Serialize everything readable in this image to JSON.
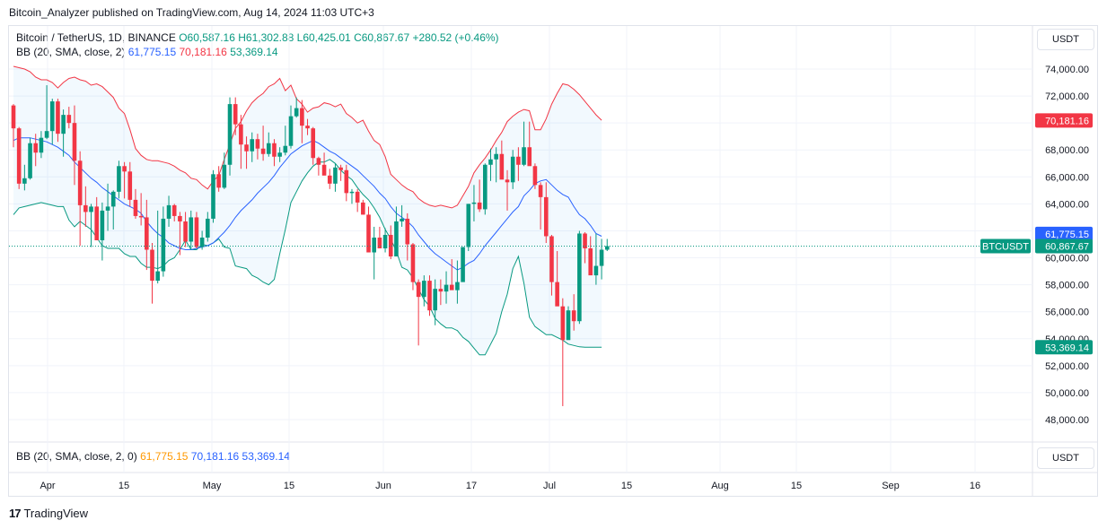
{
  "publisher": "Bitcoin_Analyzer published on TradingView.com, Aug 14, 2024 11:03 UTC+3",
  "legend": {
    "symbol": "Bitcoin / TetherUS, 1D, BINANCE",
    "ohlc": {
      "o": "O60,587.16",
      "h": "H61,302.88",
      "l": "L60,425.01",
      "c": "C60,867.67",
      "chg": "+280.52 (+0.46%)"
    },
    "bb_label": "BB (20, SMA, close, 2)",
    "bb_values": {
      "basis": "61,775.15",
      "upper": "70,181.16",
      "lower": "53,369.14"
    }
  },
  "sub_legend": {
    "label": "BB (20, SMA, close, 2, 0)",
    "v1": "61,775.15",
    "v2": "70,181.16",
    "v3": "53,369.14"
  },
  "currency_unit": "USDT",
  "price_tags": {
    "symbol": "BTCUSDT",
    "last": "60,867.67",
    "basis": "61,775.15",
    "upper": "70,181.16",
    "lower": "53,369.14"
  },
  "colors": {
    "up": "#089981",
    "down": "#f23645",
    "basis": "#2962ff",
    "upper": "#f23645",
    "lower": "#089981",
    "fill": "#2196f3"
  },
  "brand": "TradingView",
  "chart_data": {
    "type": "candlestick",
    "title": "Bitcoin / TetherUS, 1D, BINANCE",
    "ylim": [
      46600,
      74900
    ],
    "y_ticks": [
      "74,000.00",
      "72,000.00",
      "70,000.00",
      "68,000.00",
      "66,000.00",
      "64,000.00",
      "62,000.00",
      "60,000.00",
      "58,000.00",
      "56,000.00",
      "54,000.00",
      "52,000.00",
      "50,000.00",
      "48,000.00"
    ],
    "x_ticks": [
      "Apr",
      "15",
      "May",
      "15",
      "Jun",
      "17",
      "Jul",
      "15",
      "Aug",
      "15",
      "Sep",
      "16"
    ],
    "grid": true,
    "series": [
      {
        "name": "BTCUSDT",
        "values": [
          [
            71300,
            71400,
            68200,
            69600
          ],
          [
            69600,
            69700,
            65100,
            65500
          ],
          [
            65500,
            66900,
            65000,
            65900
          ],
          [
            65900,
            68900,
            65800,
            68500
          ],
          [
            68500,
            69200,
            66800,
            67800
          ],
          [
            67800,
            69400,
            67400,
            68900
          ],
          [
            68900,
            72800,
            68800,
            69400
          ],
          [
            69400,
            71800,
            68400,
            71600
          ],
          [
            71600,
            71800,
            68600,
            69200
          ],
          [
            69200,
            71000,
            67500,
            70600
          ],
          [
            70600,
            71200,
            69600,
            70000
          ],
          [
            70000,
            71300,
            65400,
            67200
          ],
          [
            67200,
            67900,
            60900,
            63900
          ],
          [
            63900,
            65300,
            62300,
            63400
          ],
          [
            63400,
            64000,
            60800,
            63800
          ],
          [
            63800,
            64500,
            61700,
            61300
          ],
          [
            61300,
            64100,
            59800,
            63500
          ],
          [
            63500,
            65500,
            62000,
            63800
          ],
          [
            63800,
            65000,
            62100,
            64900
          ],
          [
            64900,
            67200,
            64400,
            66800
          ],
          [
            66800,
            67100,
            64400,
            66400
          ],
          [
            66400,
            67100,
            63800,
            64300
          ],
          [
            64300,
            65100,
            62900,
            63100
          ],
          [
            63100,
            64800,
            62400,
            63000
          ],
          [
            63000,
            64300,
            59100,
            60600
          ],
          [
            60600,
            61100,
            56600,
            58300
          ],
          [
            58300,
            63500,
            58100,
            59000
          ],
          [
            59000,
            63800,
            58600,
            62900
          ],
          [
            62900,
            64600,
            62300,
            63900
          ],
          [
            63900,
            64000,
            62700,
            63100
          ],
          [
            63100,
            63400,
            60200,
            62700
          ],
          [
            62700,
            63400,
            60800,
            61200
          ],
          [
            61200,
            63500,
            60600,
            63000
          ],
          [
            63000,
            63400,
            60700,
            60800
          ],
          [
            60800,
            62000,
            60600,
            61500
          ],
          [
            61500,
            63400,
            61200,
            62900
          ],
          [
            62900,
            66500,
            62600,
            66200
          ],
          [
            66200,
            66800,
            64900,
            65200
          ],
          [
            65200,
            67800,
            65100,
            66900
          ],
          [
            66900,
            71900,
            66100,
            71400
          ],
          [
            71400,
            71900,
            69100,
            69900
          ],
          [
            69900,
            70600,
            66600,
            68400
          ],
          [
            68400,
            69000,
            66600,
            67900
          ],
          [
            67900,
            69300,
            67100,
            68800
          ],
          [
            68800,
            69200,
            67300,
            68100
          ],
          [
            68100,
            69800,
            67200,
            67700
          ],
          [
            67700,
            69300,
            67500,
            68500
          ],
          [
            68500,
            68800,
            66800,
            67500
          ],
          [
            67500,
            68200,
            67100,
            67800
          ],
          [
            67800,
            69800,
            67600,
            68300
          ],
          [
            68300,
            71300,
            68100,
            70500
          ],
          [
            70500,
            71900,
            70400,
            71100
          ],
          [
            71100,
            71700,
            68500,
            69800
          ],
          [
            69800,
            70300,
            69100,
            69600
          ],
          [
            69600,
            69700,
            66900,
            67400
          ],
          [
            67400,
            67500,
            66100,
            66900
          ],
          [
            66900,
            67800,
            66200,
            66100
          ],
          [
            66100,
            66600,
            65100,
            65500
          ],
          [
            65500,
            67000,
            64900,
            66700
          ],
          [
            66700,
            66900,
            65700,
            66500
          ],
          [
            66500,
            66900,
            64200,
            64800
          ],
          [
            64800,
            65100,
            64000,
            64900
          ],
          [
            64900,
            65100,
            63400,
            64100
          ],
          [
            64100,
            64300,
            63200,
            63200
          ],
          [
            63200,
            63800,
            60500,
            60400
          ],
          [
            60400,
            62300,
            58400,
            61500
          ],
          [
            61500,
            62300,
            60700,
            60700
          ],
          [
            60700,
            62200,
            60400,
            61700
          ],
          [
            61700,
            62400,
            59900,
            60100
          ],
          [
            60100,
            63800,
            60200,
            62700
          ],
          [
            62700,
            63900,
            62300,
            62900
          ],
          [
            62900,
            63300,
            59800,
            61000
          ],
          [
            61000,
            61100,
            57600,
            58200
          ],
          [
            58200,
            58400,
            53500,
            57100
          ],
          [
            57100,
            58700,
            56400,
            58300
          ],
          [
            58300,
            58700,
            55700,
            56100
          ],
          [
            56100,
            58400,
            55000,
            57700
          ],
          [
            57700,
            58400,
            56500,
            57500
          ],
          [
            57500,
            59000,
            56600,
            58000
          ],
          [
            58000,
            59900,
            57800,
            57600
          ],
          [
            57600,
            59800,
            56600,
            58200
          ],
          [
            58200,
            60600,
            58300,
            60800
          ],
          [
            60800,
            64000,
            60500,
            64000
          ],
          [
            64000,
            65400,
            62700,
            64100
          ],
          [
            64100,
            65800,
            63400,
            63600
          ],
          [
            63600,
            67000,
            63200,
            66900
          ],
          [
            66900,
            68100,
            65700,
            67300
          ],
          [
            67300,
            68200,
            65600,
            67700
          ],
          [
            67700,
            68700,
            66200,
            65800
          ],
          [
            65800,
            66500,
            63500,
            65600
          ],
          [
            65600,
            68000,
            65100,
            67500
          ],
          [
            67500,
            68200,
            65700,
            66900
          ],
          [
            66900,
            70100,
            66800,
            68200
          ],
          [
            68200,
            70100,
            67000,
            66800
          ],
          [
            66800,
            67000,
            65100,
            65400
          ],
          [
            65400,
            65600,
            62100,
            64500
          ],
          [
            64500,
            65600,
            61100,
            61600
          ],
          [
            61600,
            61700,
            57200,
            58200
          ],
          [
            58200,
            60500,
            57100,
            56400
          ],
          [
            56400,
            57000,
            49000,
            53900
          ],
          [
            53900,
            56400,
            54000,
            56100
          ],
          [
            56100,
            57300,
            54600,
            55300
          ],
          [
            55300,
            62000,
            55100,
            61800
          ],
          [
            61800,
            61900,
            59600,
            60700
          ],
          [
            60700,
            61600,
            60100,
            58700
          ],
          [
            58700,
            61800,
            58000,
            59400
          ],
          [
            59400,
            61400,
            58400,
            60600
          ],
          [
            60600,
            61400,
            60500,
            60868
          ]
        ]
      },
      {
        "name": "BB basis",
        "values": [
          68700,
          68900,
          68900,
          68900,
          68800,
          68700,
          68600,
          68400,
          68200,
          67900,
          67600,
          67100,
          66700,
          66300,
          65900,
          65600,
          65200,
          64900,
          64600,
          64300,
          64000,
          63800,
          63600,
          63300,
          62700,
          62200,
          61800,
          61500,
          61100,
          60900,
          60700,
          60600,
          60600,
          60700,
          60800,
          60900,
          61100,
          61500,
          61900,
          62400,
          63000,
          63500,
          63900,
          64300,
          64800,
          65200,
          65600,
          66100,
          66700,
          67200,
          67700,
          68000,
          68300,
          68500,
          68700,
          68500,
          68200,
          67900,
          67700,
          67400,
          67100,
          66800,
          66500,
          66100,
          65700,
          65300,
          64800,
          64400,
          63800,
          63300,
          63000,
          62700,
          62300,
          61700,
          61200,
          60700,
          60300,
          60000,
          59700,
          59400,
          59100,
          59300,
          59600,
          59800,
          60300,
          60900,
          61400,
          61900,
          62400,
          62900,
          63400,
          63800,
          64600,
          65000,
          65500,
          65700,
          65800,
          65400,
          65000,
          64700,
          64500,
          63800,
          63200,
          62900,
          62400,
          61800,
          61600
        ]
      },
      {
        "name": "BB upper",
        "values": [
          74200,
          74100,
          74000,
          73800,
          73400,
          73200,
          73200,
          73000,
          72600,
          73000,
          73300,
          73400,
          73200,
          73100,
          72800,
          72900,
          72700,
          72300,
          71900,
          71100,
          70700,
          69500,
          68100,
          67600,
          67300,
          67200,
          67200,
          67100,
          67000,
          66800,
          66500,
          66300,
          65900,
          65800,
          65400,
          65100,
          65700,
          66100,
          67300,
          68400,
          69600,
          70100,
          70900,
          71500,
          71900,
          72200,
          72700,
          72900,
          73300,
          72400,
          72800,
          71800,
          71400,
          70800,
          71100,
          71200,
          71500,
          71400,
          71200,
          71400,
          70700,
          70400,
          70000,
          70200,
          69400,
          68700,
          68400,
          67500,
          66200,
          65800,
          65400,
          65100,
          64900,
          64400,
          64100,
          63900,
          63800,
          63900,
          63800,
          63700,
          63900,
          64600,
          65300,
          66300,
          66900,
          67400,
          68000,
          68700,
          69300,
          70100,
          70500,
          70800,
          71000,
          70900,
          69500,
          69500,
          70300,
          71400,
          72200,
          72900,
          72800,
          72500,
          72100,
          71600,
          71100,
          70600,
          70200
        ]
      },
      {
        "name": "BB lower",
        "values": [
          63200,
          63700,
          63800,
          63900,
          64000,
          64100,
          64000,
          63900,
          63800,
          63800,
          62800,
          62300,
          62700,
          62400,
          62100,
          61500,
          60900,
          60700,
          60700,
          60700,
          60300,
          60100,
          60100,
          59600,
          59300,
          59300,
          59200,
          59400,
          59800,
          60000,
          60600,
          61300,
          60600,
          60600,
          61000,
          60900,
          61100,
          61400,
          60800,
          60700,
          59400,
          59300,
          59200,
          58700,
          58500,
          58200,
          58000,
          58400,
          60300,
          62100,
          64100,
          64900,
          65700,
          66300,
          66800,
          67100,
          67100,
          67300,
          67000,
          66500,
          66100,
          65800,
          65200,
          64700,
          64300,
          63700,
          63000,
          62100,
          61400,
          60500,
          59300,
          59100,
          58500,
          57700,
          56900,
          56400,
          55500,
          55100,
          54800,
          54800,
          54600,
          54100,
          53800,
          53300,
          52800,
          52800,
          53600,
          54400,
          56000,
          57300,
          59200,
          60100,
          58100,
          55600,
          54900,
          54600,
          54300,
          54300,
          54100,
          53900,
          53600,
          53500,
          53400,
          53369,
          53369,
          53369,
          53369
        ]
      }
    ]
  }
}
